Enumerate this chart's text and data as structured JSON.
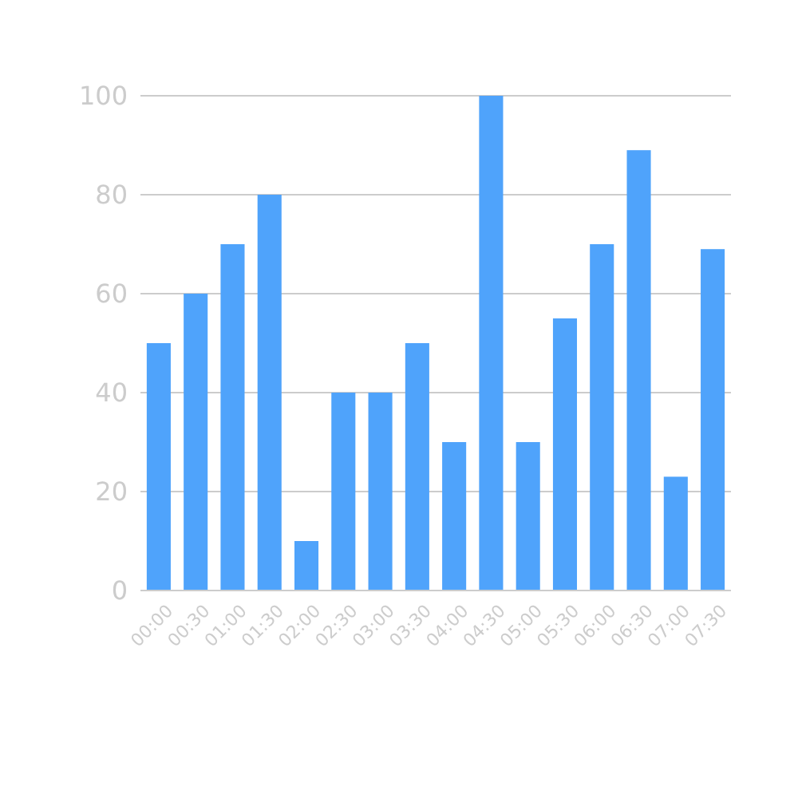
{
  "chart_data": {
    "type": "bar",
    "categories": [
      "00:00",
      "00:30",
      "01:00",
      "01:30",
      "02:00",
      "02:30",
      "03:00",
      "03:30",
      "04:00",
      "04:30",
      "05:00",
      "05:30",
      "06:00",
      "06:30",
      "07:00",
      "07:30"
    ],
    "values": [
      50,
      60,
      70,
      80,
      10,
      40,
      40,
      50,
      30,
      100,
      30,
      55,
      70,
      89,
      23,
      69
    ],
    "color": "#4fa3fb",
    "ylim": [
      0,
      100
    ],
    "yticks": [
      0,
      20,
      40,
      60,
      80,
      100
    ],
    "grid": "y"
  }
}
